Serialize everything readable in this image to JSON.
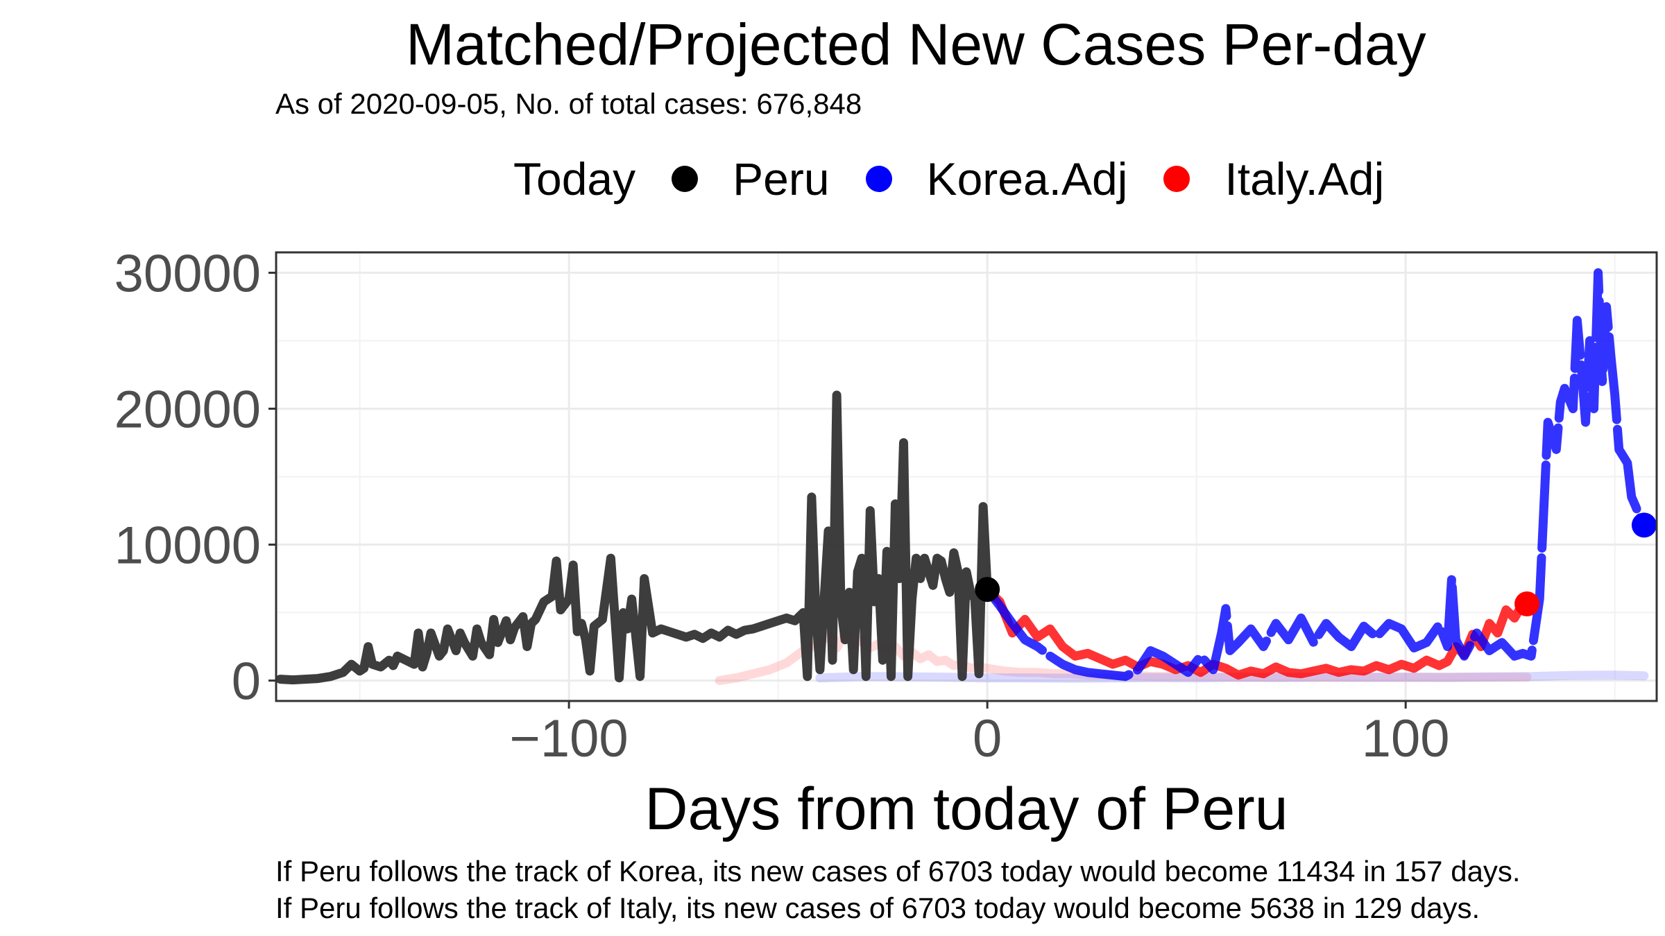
{
  "chart_data": {
    "type": "line",
    "title": "Matched/Projected New Cases Per-day",
    "subtitle": "As of 2020-09-05, No. of total cases: 676,848",
    "xlabel": "Days from today of Peru",
    "ylabel": "",
    "xlim": [
      -170,
      160
    ],
    "ylim": [
      -1500,
      31500
    ],
    "x_ticks": [
      -100,
      0,
      100
    ],
    "y_ticks": [
      0,
      10000,
      20000,
      30000
    ],
    "grid": true,
    "legend": {
      "title": "Today",
      "position": "top",
      "entries": [
        {
          "name": "Peru",
          "color": "#000000"
        },
        {
          "name": "Korea.Adj",
          "color": "#0000ff"
        },
        {
          "name": "Italy.Adj",
          "color": "#ff0000"
        }
      ]
    },
    "series": [
      {
        "name": "Peru",
        "color": "#333333",
        "x": [
          -169,
          -166,
          -163,
          -160,
          -157,
          -154,
          -152,
          -150,
          -149,
          -148,
          -147,
          -145,
          -143,
          -142,
          -141,
          -139,
          -137,
          -136,
          -135,
          -134,
          -133,
          -131,
          -130,
          -129,
          -127,
          -126,
          -125,
          -123,
          -122,
          -121,
          -119,
          -118,
          -117,
          -115,
          -114,
          -113,
          -111,
          -110,
          -109,
          -108,
          -106,
          -104,
          -103,
          -102,
          -100,
          -99,
          -98,
          -97,
          -96,
          -95,
          -94,
          -92,
          -90,
          -88,
          -87,
          -86,
          -85,
          -84,
          -83,
          -82,
          -80,
          -78,
          -76,
          -74,
          -72,
          -70,
          -68,
          -66,
          -64,
          -62,
          -60,
          -58,
          -56,
          -54,
          -52,
          -50,
          -48,
          -46,
          -44,
          -43,
          -42,
          -41,
          -40,
          -39,
          -38,
          -37,
          -36,
          -35,
          -34,
          -33,
          -32,
          -31,
          -30,
          -29,
          -28,
          -27,
          -26,
          -25,
          -24,
          -23,
          -22,
          -21,
          -20,
          -19,
          -18,
          -17,
          -16,
          -15,
          -14,
          -13,
          -12,
          -11,
          -10,
          -9,
          -8,
          -7,
          -6,
          -5,
          -4,
          -3,
          -2,
          -1,
          0
        ],
        "values": [
          100,
          50,
          100,
          150,
          300,
          600,
          1200,
          700,
          900,
          2500,
          1200,
          1000,
          1500,
          1100,
          1800,
          1500,
          1200,
          3500,
          1000,
          2000,
          3500,
          1800,
          2200,
          3800,
          2200,
          3500,
          2800,
          1800,
          3800,
          2800,
          1900,
          4500,
          2800,
          4400,
          3000,
          3900,
          4700,
          2500,
          4200,
          4500,
          5800,
          6200,
          8800,
          5200,
          6000,
          8500,
          3600,
          4200,
          3000,
          700,
          4000,
          4500,
          9000,
          200,
          5000,
          3800,
          6000,
          3200,
          300,
          7500,
          3500,
          3800,
          3600,
          3400,
          3200,
          3400,
          3100,
          3500,
          3200,
          3700,
          3400,
          3700,
          3800,
          4000,
          4200,
          4400,
          4600,
          4400,
          5000,
          300,
          13500,
          5000,
          800,
          6000,
          11000,
          1500,
          21000,
          5500,
          3000,
          6500,
          800,
          8000,
          9000,
          300,
          12500,
          5800,
          7500,
          1500,
          9500,
          300,
          13000,
          7500,
          17500,
          300,
          6000,
          9000,
          7500,
          9000,
          8000,
          7000,
          9000,
          8800,
          7500,
          6500,
          9400,
          8000,
          300,
          8000,
          6500,
          6000,
          500,
          12800,
          6703
        ]
      },
      {
        "name": "Korea.Adj",
        "color": "#0000ff",
        "x": [
          0,
          3,
          6,
          9,
          12,
          15,
          18,
          21,
          24,
          27,
          30,
          33,
          36,
          39,
          42,
          45,
          48,
          51,
          54,
          56,
          57,
          58,
          60,
          63,
          66,
          69,
          72,
          75,
          78,
          81,
          84,
          87,
          90,
          93,
          96,
          99,
          102,
          105,
          108,
          110,
          111,
          112,
          114,
          117,
          120,
          123,
          126,
          128,
          130,
          132,
          134,
          136,
          137,
          138,
          140,
          141,
          142,
          143,
          144,
          145,
          146,
          147,
          148,
          149,
          150,
          151,
          152,
          153,
          154,
          155,
          156,
          157
        ],
        "values": [
          6703,
          5500,
          4200,
          3000,
          2500,
          1800,
          1200,
          800,
          600,
          500,
          400,
          300,
          800,
          2200,
          1800,
          1200,
          600,
          1800,
          800,
          3500,
          5300,
          2200,
          2800,
          3800,
          2500,
          4200,
          3000,
          4600,
          2800,
          4200,
          3200,
          2500,
          4000,
          3200,
          4200,
          3800,
          2400,
          2800,
          4100,
          2500,
          7500,
          3000,
          1800,
          3500,
          2200,
          2800,
          1800,
          2000,
          1800,
          6000,
          19000,
          17000,
          20500,
          21500,
          20000,
          26500,
          23000,
          19000,
          25000,
          20000,
          30000,
          22000,
          27500,
          24000,
          21000,
          17000,
          16500,
          16000,
          13500,
          12800,
          12000,
          11434
        ]
      },
      {
        "name": "Italy.Adj",
        "color": "#ff0000",
        "x": [
          0,
          3,
          6,
          9,
          12,
          15,
          18,
          21,
          24,
          27,
          30,
          33,
          36,
          39,
          42,
          45,
          48,
          51,
          54,
          57,
          60,
          63,
          66,
          69,
          72,
          75,
          78,
          81,
          84,
          87,
          90,
          93,
          96,
          99,
          102,
          105,
          108,
          110,
          112,
          114,
          116,
          118,
          120,
          122,
          124,
          126,
          128,
          129
        ],
        "values": [
          6703,
          5800,
          3500,
          4500,
          3200,
          3800,
          2500,
          1800,
          2000,
          1600,
          1200,
          1500,
          1000,
          1400,
          1200,
          800,
          1100,
          600,
          1200,
          900,
          400,
          700,
          500,
          1000,
          600,
          500,
          700,
          900,
          600,
          800,
          700,
          1100,
          800,
          1200,
          900,
          1500,
          1100,
          1400,
          2500,
          1900,
          3400,
          2500,
          4200,
          3500,
          5200,
          4600,
          5638,
          5638
        ]
      },
      {
        "name": "Korea.Adj (light)",
        "color": "#8080ff",
        "x": [
          -40,
          -30,
          -20,
          -10,
          0,
          10,
          20,
          30,
          40,
          50,
          60,
          70,
          80,
          90,
          100,
          110,
          120,
          130,
          140,
          150,
          157
        ],
        "values": [
          200,
          300,
          280,
          250,
          200,
          200,
          180,
          200,
          220,
          200,
          250,
          230,
          260,
          240,
          250,
          230,
          270,
          300,
          380,
          400,
          350
        ]
      },
      {
        "name": "Italy.Adj (light)",
        "color": "#ff8080",
        "x": [
          -64,
          -60,
          -56,
          -52,
          -48,
          -44,
          -40,
          -38,
          -36,
          -34,
          -32,
          -30,
          -28,
          -26,
          -24,
          -22,
          -20,
          -18,
          -16,
          -14,
          -12,
          -10,
          -8,
          -6,
          -4,
          -2,
          0,
          4,
          8,
          12,
          16,
          20,
          24,
          28,
          32,
          36,
          40,
          50,
          60,
          80,
          100,
          120,
          129
        ],
        "values": [
          0,
          200,
          500,
          800,
          1300,
          2200,
          2800,
          3300,
          2400,
          3500,
          2600,
          3000,
          2400,
          2700,
          2200,
          2500,
          1800,
          2100,
          1600,
          1900,
          1400,
          1500,
          1100,
          1200,
          900,
          1000,
          900,
          700,
          600,
          600,
          500,
          500,
          400,
          400,
          350,
          350,
          300,
          300,
          250,
          250,
          250,
          250,
          250
        ]
      }
    ],
    "today_points": [
      {
        "name": "Peru",
        "x": 0,
        "y": 6703,
        "color": "#000000"
      },
      {
        "name": "Korea.Adj",
        "x": 157,
        "y": 11434,
        "color": "#0000ff"
      },
      {
        "name": "Italy.Adj",
        "x": 129,
        "y": 5638,
        "color": "#ff0000"
      }
    ],
    "captions": [
      "If Peru follows the track of Korea, its new cases of 6703 today would become 11434 in 157 days.",
      "If Peru follows the track of Italy, its new cases of 6703 today would become 5638 in 129 days."
    ]
  }
}
